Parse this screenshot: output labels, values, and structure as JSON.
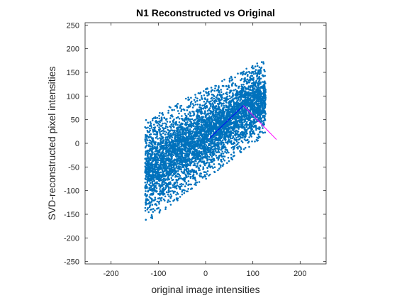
{
  "chart_data": {
    "type": "scatter",
    "title": "N1 Reconstructed vs Original",
    "xlabel": "original image intensities",
    "ylabel": "SVD-reconstructed pixel intensities",
    "xlim": [
      -255,
      255
    ],
    "ylim": [
      -255,
      255
    ],
    "xticks": [
      -200,
      -100,
      0,
      100,
      200
    ],
    "yticks": [
      -250,
      -200,
      -150,
      -100,
      -50,
      0,
      50,
      100,
      150,
      200,
      250
    ],
    "grid": false,
    "scatter_region": {
      "x_range": [
        -128,
        127
      ],
      "y_at_x_min": [
        -172,
        52
      ],
      "y_at_x_max": [
        18,
        178
      ]
    },
    "lines": [
      {
        "color": "#0000ff",
        "x": [
          8,
          80
        ],
        "y": [
          10,
          80
        ]
      },
      {
        "color": "#ff00ff",
        "x": [
          80,
          150
        ],
        "y": [
          80,
          8
        ]
      }
    ],
    "colors": {
      "marker": "#0072bd",
      "axis": "#262626"
    }
  }
}
